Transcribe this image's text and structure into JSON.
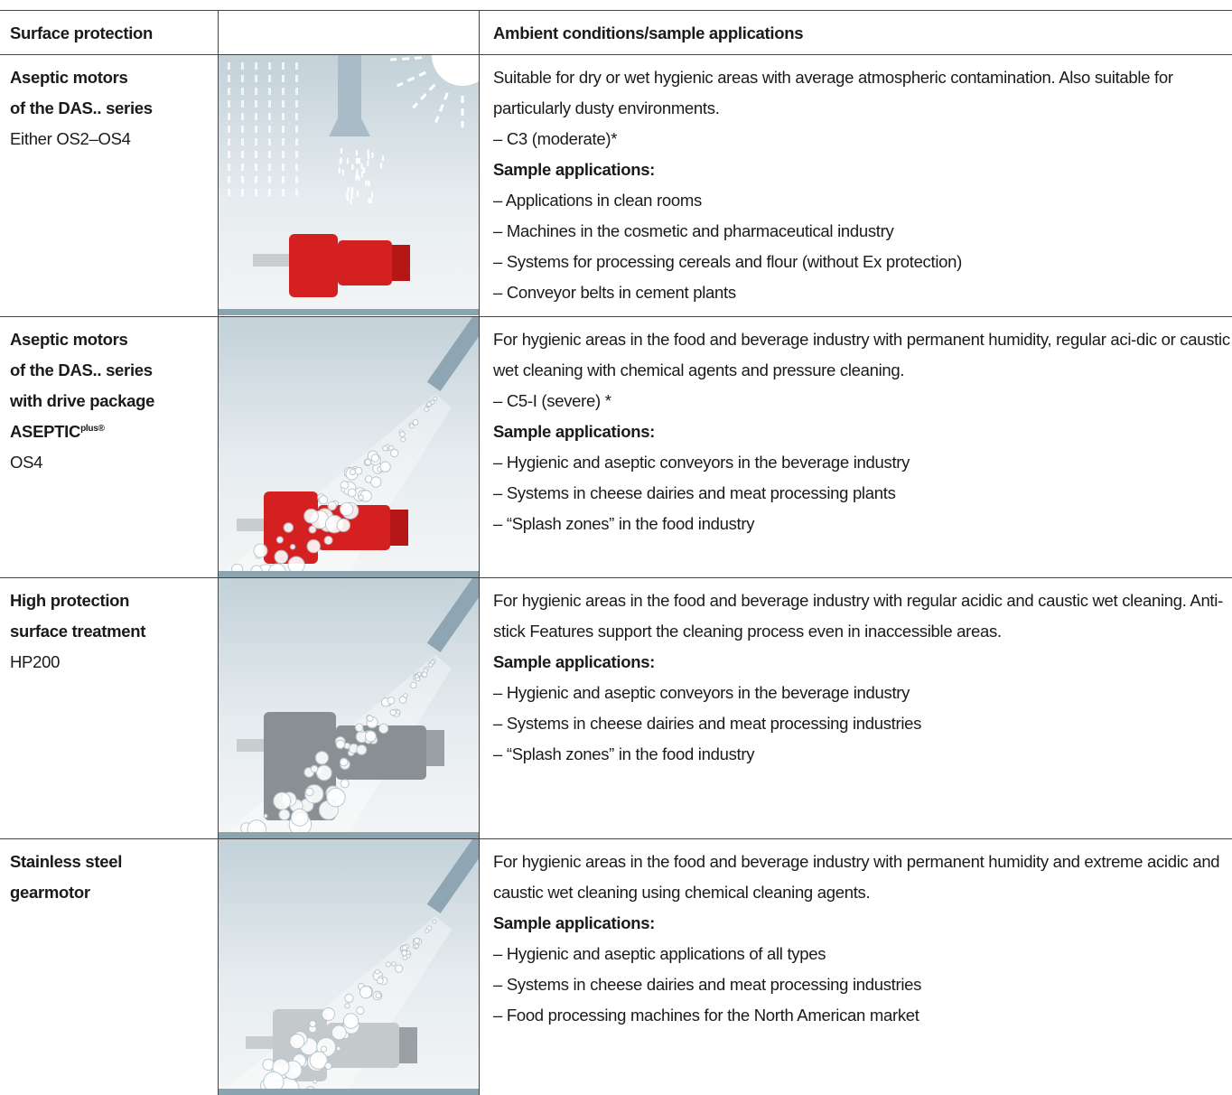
{
  "table": {
    "header": {
      "col1": "Surface protection",
      "col3": "Ambient conditions/sample applications"
    },
    "sample_heading": "Sample applications:",
    "rows": [
      {
        "title_lines": [
          "Aseptic motors",
          "of the DAS.. series"
        ],
        "subtitle": "Either OS2–OS4",
        "description": "Suitable for dry or wet hygienic areas with average atmospheric contamination. Also suitable for particularly dusty environments.",
        "rating": "–  C3 (moderate)*",
        "applications": [
          "–  Applications in clean rooms",
          "–  Machines in the cosmetic and pharmaceutical industry",
          "–  Systems for processing cereals and flour (without Ex protection)",
          "–  Conveyor belts in cement plants"
        ]
      },
      {
        "title_lines": [
          "Aseptic motors",
          "of the DAS.. series",
          "with drive package",
          "ASEPTIC"
        ],
        "title_superscript": "plus®",
        "subtitle": "OS4",
        "description": "For hygienic areas in the food and beverage industry with permanent humidity, regular aci-dic or caustic wet cleaning with chemical agents and pressure cleaning.",
        "rating": "–  C5-I (severe) *",
        "applications": [
          "–  Hygienic and aseptic conveyors in the beverage industry",
          "–  Systems in cheese dairies and meat processing plants",
          "–  “Splash zones” in the food industry"
        ]
      },
      {
        "title_lines": [
          "High protection",
          "surface treatment"
        ],
        "subtitle": "HP200",
        "description": "For hygienic areas in the food and beverage industry with regular acidic and caustic wet cleaning. Anti-stick Features support the cleaning process even in inaccessible areas.",
        "applications": [
          "–  Hygienic and aseptic conveyors in the beverage industry",
          "–  Systems in cheese dairies and meat processing industries",
          "–  “Splash zones” in the food industry"
        ]
      },
      {
        "title_lines": [
          "Stainless steel",
          "gearmotor"
        ],
        "description": "For hygienic areas in the food and beverage industry with permanent humidity and extreme acidic and caustic wet cleaning using chemical cleaning agents.",
        "applications": [
          "–  Hygienic and aseptic applications of all types",
          "–  Systems in cheese dairies and meat processing industries",
          "–  Food processing machines for the North American market"
        ]
      }
    ]
  }
}
